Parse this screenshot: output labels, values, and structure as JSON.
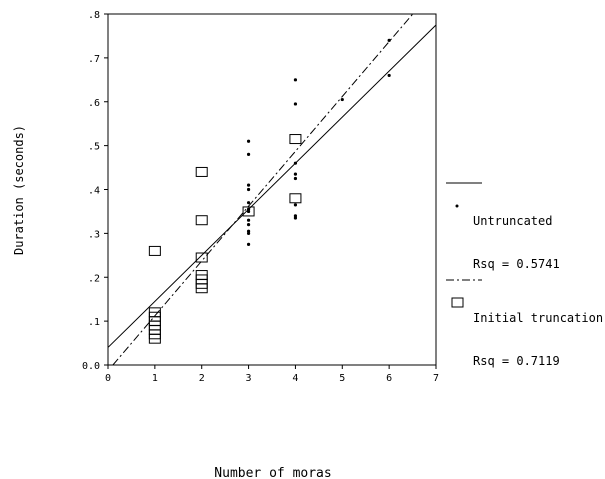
{
  "chart_data": {
    "type": "scatter",
    "title": "",
    "xlabel": "Number of moras",
    "ylabel": "Duration (seconds)",
    "xlim": [
      0,
      7
    ],
    "ylim": [
      0.0,
      0.8
    ],
    "x_ticks": [
      0,
      1,
      2,
      3,
      4,
      5,
      6,
      7
    ],
    "y_ticks": [
      0.0,
      0.1,
      0.2,
      0.3,
      0.4,
      0.5,
      0.6,
      0.7,
      0.8
    ],
    "x_tick_labels": [
      "0",
      "1",
      "2",
      "3",
      "4",
      "5",
      "6",
      "7"
    ],
    "y_tick_labels": [
      "0.0",
      ".1",
      ".2",
      ".3",
      ".4",
      ".5",
      ".6",
      ".7",
      ".8"
    ],
    "grid": false,
    "legend_position": "right",
    "series": [
      {
        "name": "Untruncated",
        "marker": "dot",
        "rsq_label": "Rsq = 0.5741",
        "fit_line": {
          "style": "solid",
          "intercept": 0.04,
          "slope": 0.105
        },
        "points": [
          [
            3,
            0.51
          ],
          [
            3,
            0.48
          ],
          [
            3,
            0.41
          ],
          [
            3,
            0.4
          ],
          [
            3,
            0.37
          ],
          [
            3,
            0.355
          ],
          [
            3,
            0.35
          ],
          [
            3,
            0.33
          ],
          [
            3,
            0.32
          ],
          [
            3,
            0.305
          ],
          [
            3,
            0.3
          ],
          [
            3,
            0.275
          ],
          [
            4,
            0.65
          ],
          [
            4,
            0.595
          ],
          [
            4,
            0.46
          ],
          [
            4,
            0.435
          ],
          [
            4,
            0.425
          ],
          [
            4,
            0.365
          ],
          [
            4,
            0.34
          ],
          [
            4,
            0.335
          ],
          [
            5,
            0.605
          ],
          [
            6,
            0.74
          ],
          [
            6,
            0.66
          ]
        ]
      },
      {
        "name": "Initial truncation",
        "marker": "square",
        "rsq_label": "Rsq = 0.7119",
        "fit_line": {
          "style": "dash-dot",
          "intercept": -0.013,
          "slope": 0.125
        },
        "points": [
          [
            1,
            0.26
          ],
          [
            1,
            0.12
          ],
          [
            1,
            0.11
          ],
          [
            1,
            0.1
          ],
          [
            1,
            0.09
          ],
          [
            1,
            0.08
          ],
          [
            1,
            0.07
          ],
          [
            1,
            0.06
          ],
          [
            2,
            0.44
          ],
          [
            2,
            0.33
          ],
          [
            2,
            0.245
          ],
          [
            2,
            0.205
          ],
          [
            2,
            0.195
          ],
          [
            2,
            0.185
          ],
          [
            2,
            0.175
          ],
          [
            3,
            0.35
          ],
          [
            4,
            0.515
          ],
          [
            4,
            0.38
          ]
        ]
      }
    ]
  }
}
